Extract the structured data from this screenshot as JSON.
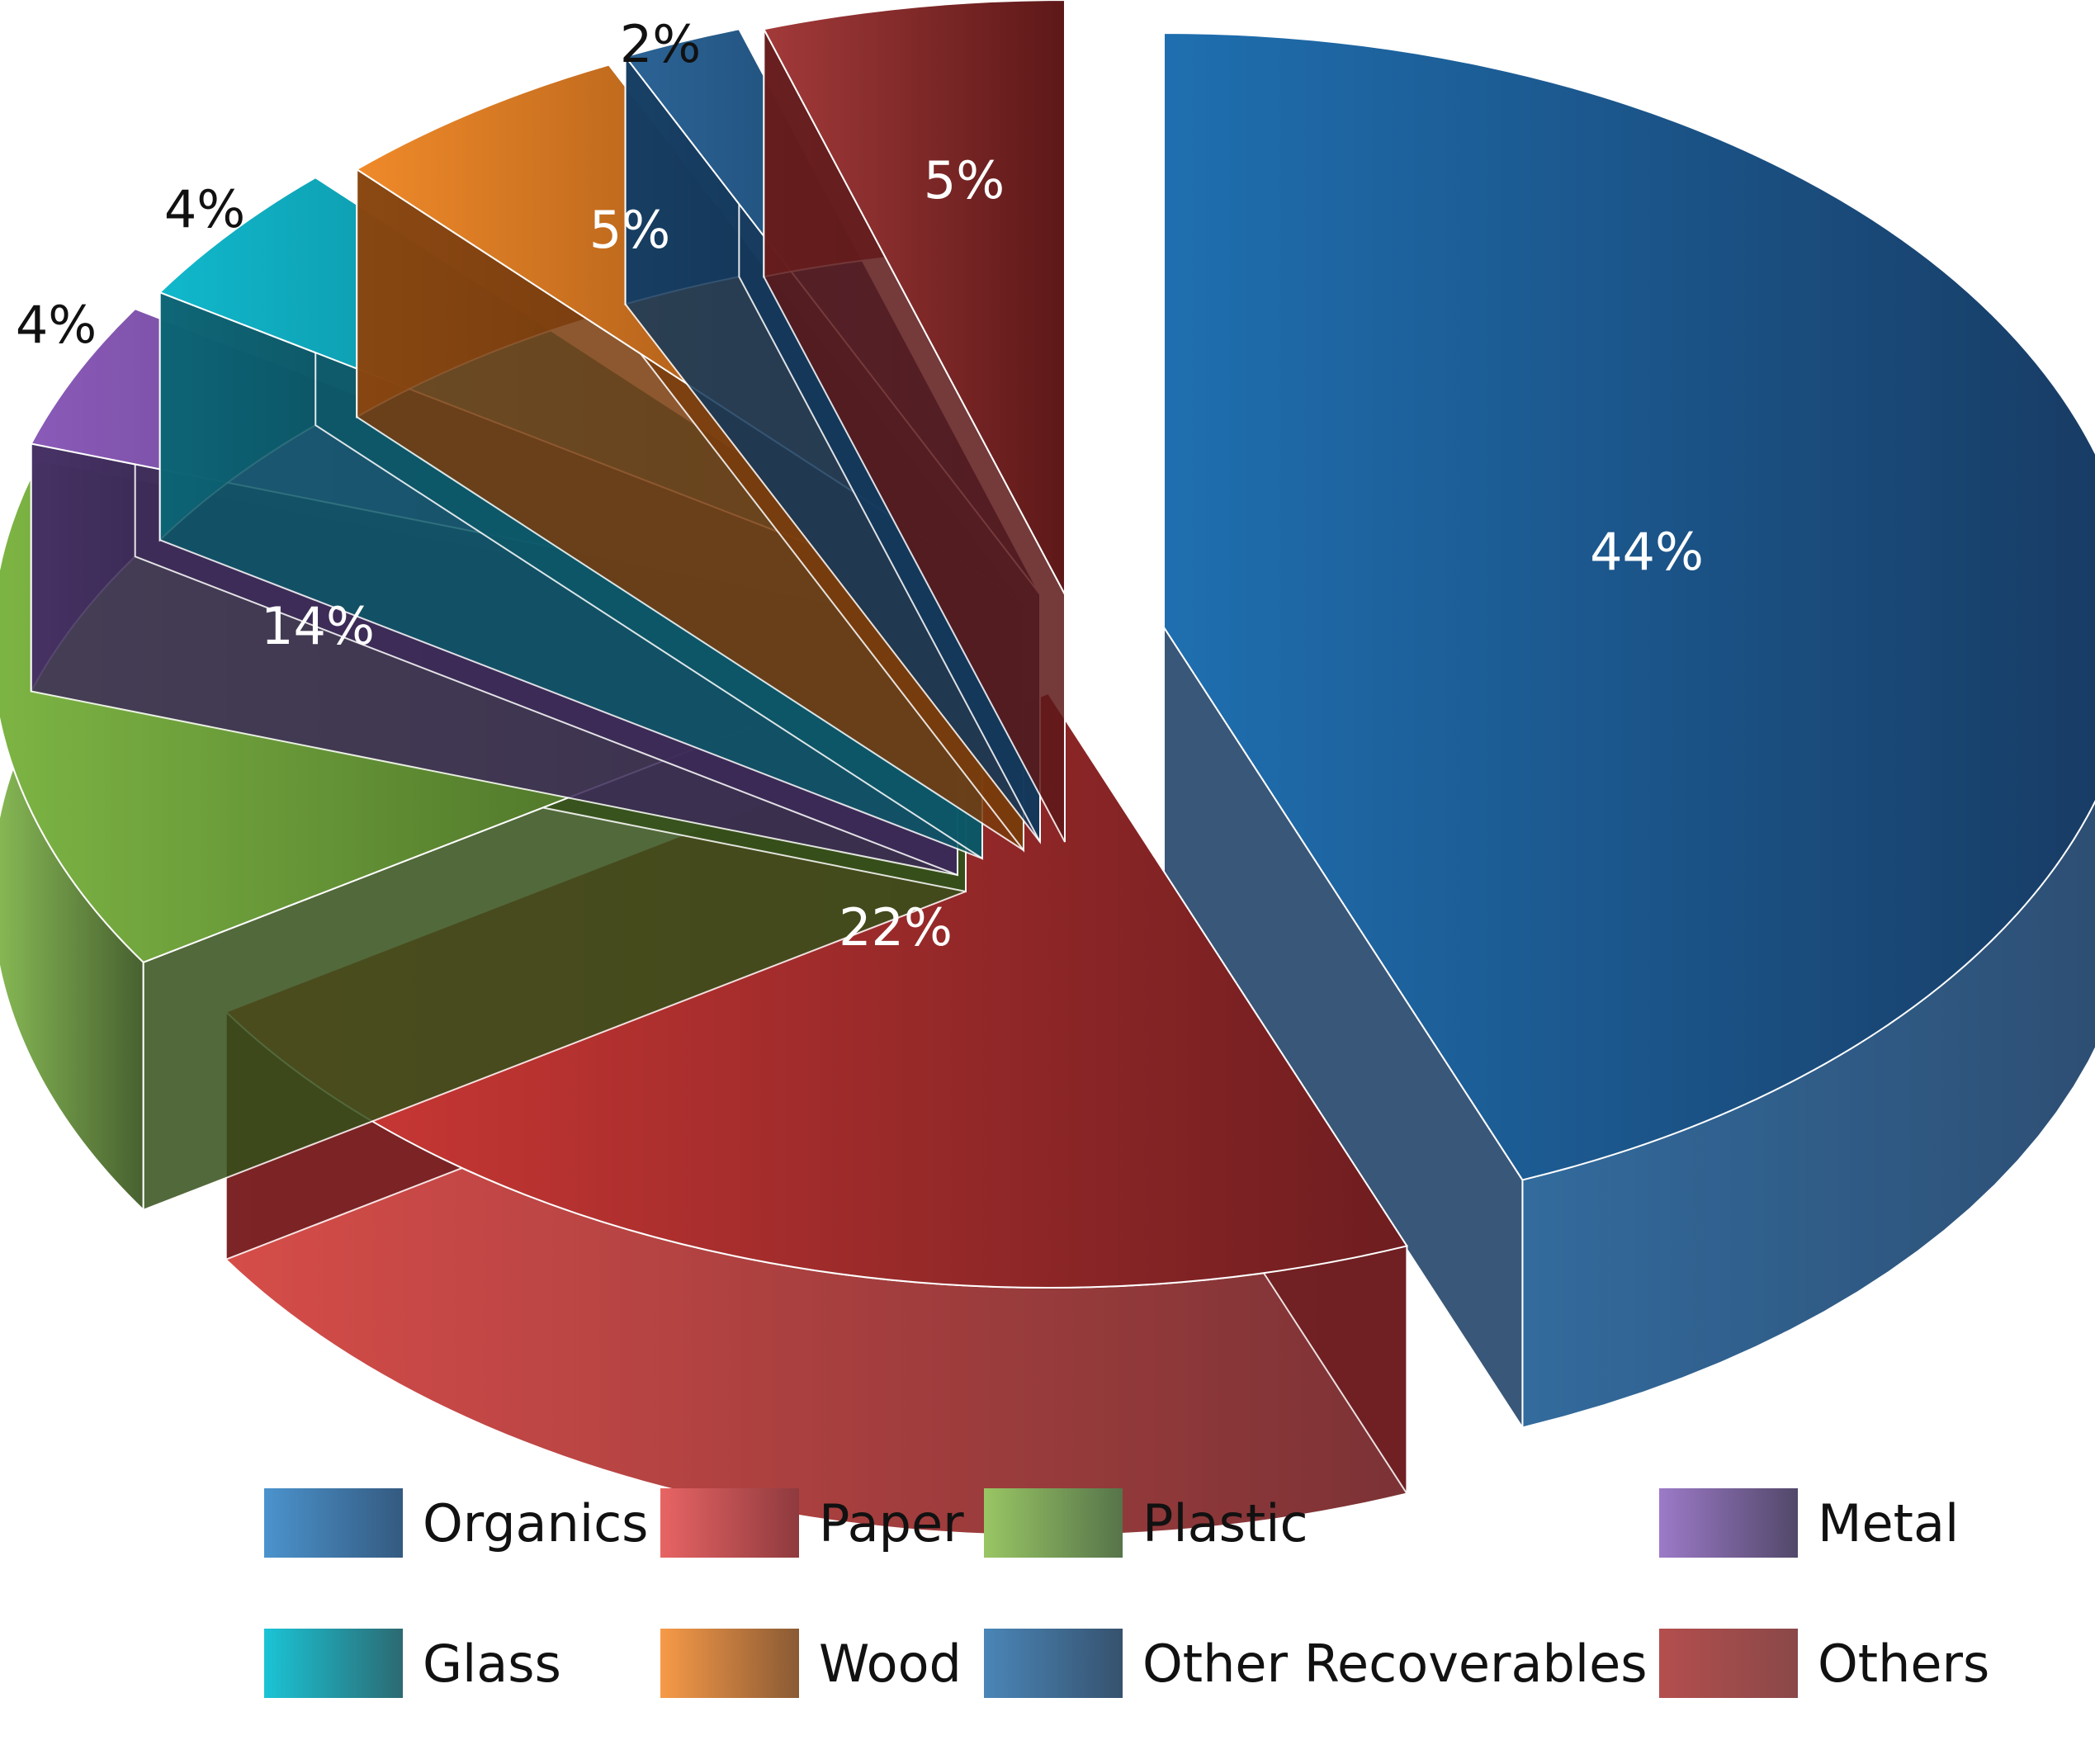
{
  "chart_data": {
    "type": "pie",
    "style": "3d-exploded",
    "title": "",
    "series": [
      {
        "name": "",
        "slices": [
          {
            "label": "Organics",
            "value": 44,
            "display": "44%",
            "color": "#1f6fb0",
            "color_dark": "#173a62"
          },
          {
            "label": "Paper",
            "value": 22,
            "display": "22%",
            "color": "#d23a36",
            "color_dark": "#6e1d20"
          },
          {
            "label": "Plastic",
            "value": 14,
            "display": "14%",
            "color": "#7db544",
            "color_dark": "#34501a"
          },
          {
            "label": "Metal",
            "value": 4,
            "display": "4%",
            "color": "#8a5ab8",
            "color_dark": "#3c2a58"
          },
          {
            "label": "Glass",
            "value": 4,
            "display": "4%",
            "color": "#10b8cc",
            "color_dark": "#0b5868"
          },
          {
            "label": "Wood",
            "value": 5,
            "display": "5%",
            "color": "#f08a2a",
            "color_dark": "#7a3c0c"
          },
          {
            "label": "Other Recoverables",
            "value": 2,
            "display": "2%",
            "color": "#2c6496",
            "color_dark": "#12385c"
          },
          {
            "label": "Others",
            "value": 5,
            "display": "5%",
            "color": "#a33a3a",
            "color_dark": "#5e1818"
          }
        ]
      }
    ],
    "legend": {
      "placement": "bottom",
      "items": [
        {
          "label": "Organics",
          "from": "#4b93cd",
          "to": "#345a80"
        },
        {
          "label": "Paper",
          "from": "#e86464",
          "to": "#8e3a3e"
        },
        {
          "label": "Plastic",
          "from": "#99c664",
          "to": "#56744a"
        },
        {
          "label": "Metal",
          "from": "#9c7ac8",
          "to": "#52486a"
        },
        {
          "label": "Glass",
          "from": "#1ac4d6",
          "to": "#2c6a72"
        },
        {
          "label": "Wood",
          "from": "#f79a48",
          "to": "#8a5a34"
        },
        {
          "label": "Other Recoverables",
          "from": "#4a86b8",
          "to": "#36526e"
        },
        {
          "label": "Others",
          "from": "#b44e4e",
          "to": "#8a4848"
        }
      ]
    }
  }
}
